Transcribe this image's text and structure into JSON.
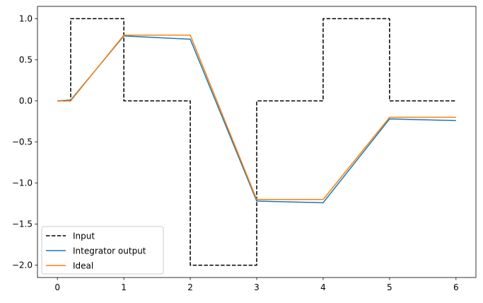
{
  "chart_data": {
    "type": "line",
    "x_ticks": [
      0,
      1,
      2,
      3,
      4,
      5,
      6
    ],
    "y_ticks": [
      1.0,
      0.5,
      0.0,
      -0.5,
      -1.0,
      -1.5,
      -2.0
    ],
    "x_tick_labels": [
      "0",
      "1",
      "2",
      "3",
      "4",
      "5",
      "6"
    ],
    "y_tick_labels": [
      "1.0",
      "0.5",
      "0.0",
      "−0.5",
      "−1.0",
      "−1.5",
      "−2.0"
    ],
    "xlim": [
      -0.3,
      6.3
    ],
    "ylim": [
      -2.15,
      1.15
    ],
    "grid": false,
    "legend_position": "lower-left",
    "series": [
      {
        "name": "Input",
        "color": "#000000",
        "style": "dashed",
        "x": [
          0,
          0.2,
          0.2,
          1,
          1,
          2,
          2,
          3,
          3,
          4,
          4,
          5,
          5,
          6
        ],
        "y": [
          0,
          0,
          1,
          1,
          0,
          0,
          -2,
          -2,
          0,
          0,
          1,
          1,
          0,
          0
        ]
      },
      {
        "name": "Integrator output",
        "color": "#1f77b4",
        "style": "solid",
        "x": [
          0,
          0.2,
          1,
          2,
          3,
          4,
          5,
          6
        ],
        "y": [
          0,
          0.01,
          0.79,
          0.75,
          -1.22,
          -1.24,
          -0.22,
          -0.24
        ]
      },
      {
        "name": "Ideal",
        "color": "#ff7f0e",
        "style": "solid",
        "x": [
          0,
          0.2,
          1,
          2,
          3,
          4,
          5,
          6
        ],
        "y": [
          0,
          0,
          0.8,
          0.8,
          -1.2,
          -1.2,
          -0.2,
          -0.2
        ]
      }
    ]
  }
}
